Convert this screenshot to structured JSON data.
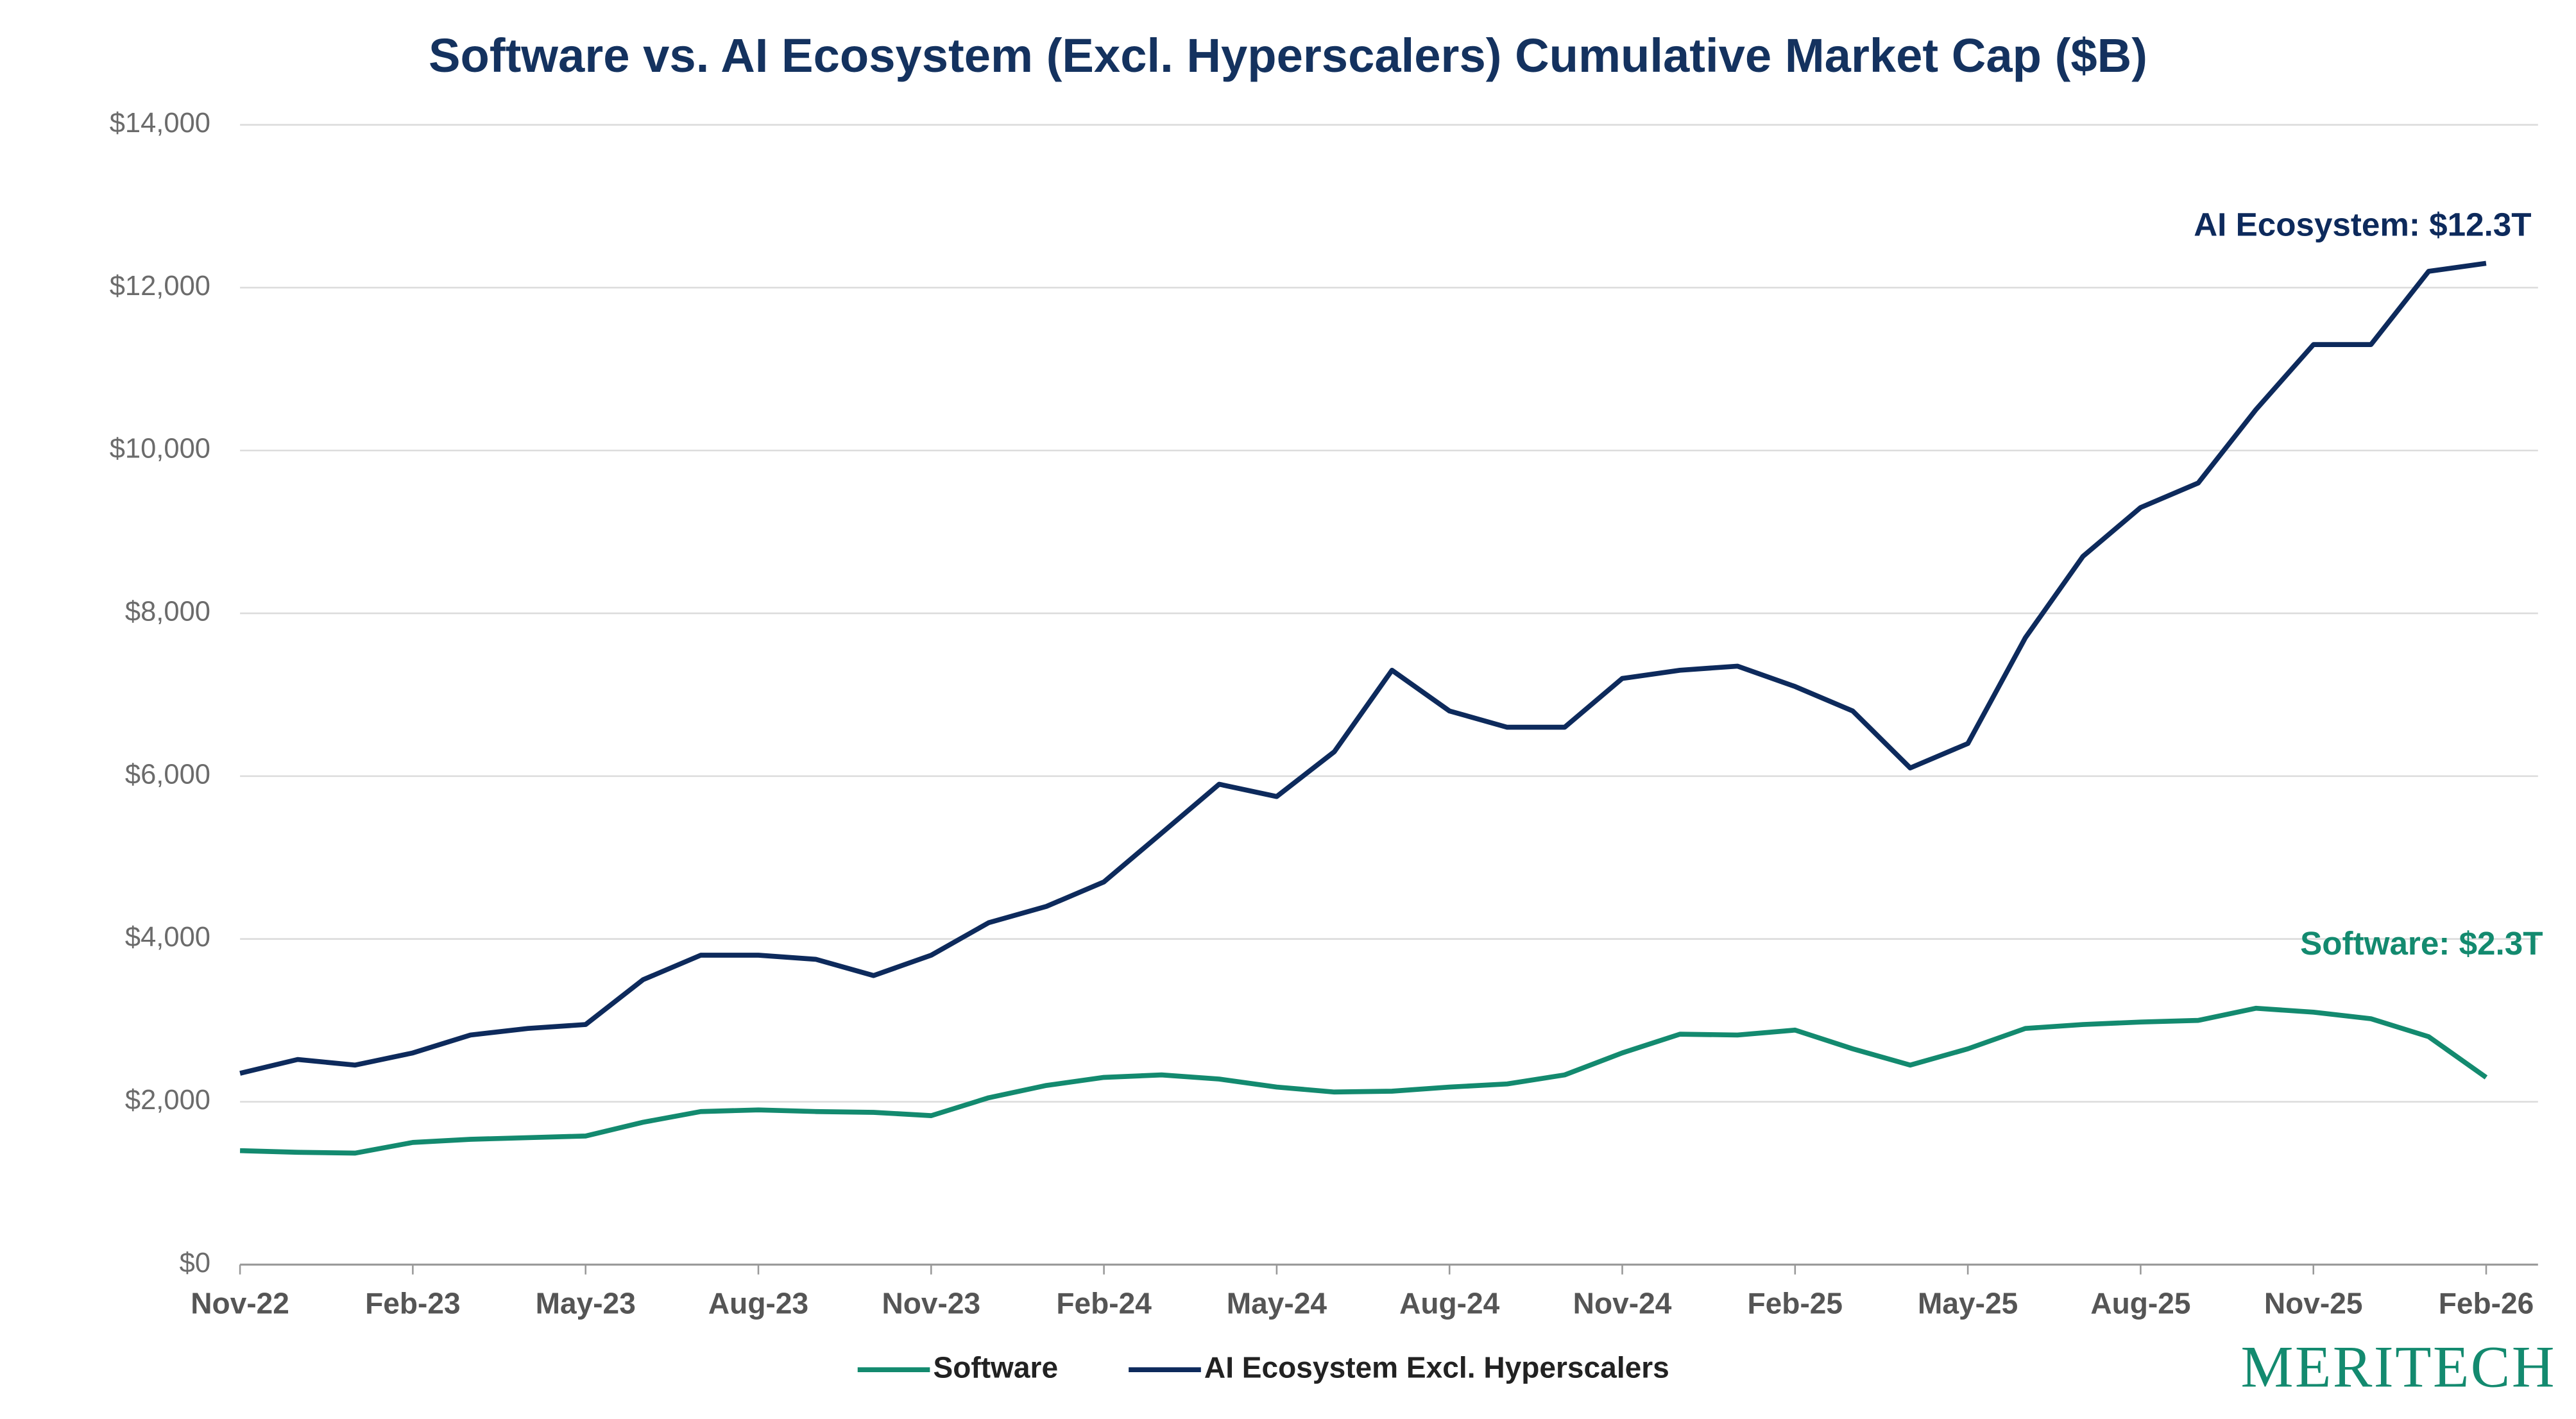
{
  "chart_data": {
    "type": "line",
    "title": "Software vs. AI Ecosystem (Excl. Hyperscalers) Cumulative Market Cap ($B)",
    "categories": [
      "Nov-22",
      null,
      null,
      "Feb-23",
      null,
      null,
      "May-23",
      null,
      null,
      "Aug-23",
      null,
      null,
      "Nov-23",
      null,
      null,
      "Feb-24",
      null,
      null,
      "May-24",
      null,
      null,
      "Aug-24",
      null,
      null,
      "Nov-24",
      null,
      null,
      "Feb-25",
      null,
      null,
      "May-25",
      null,
      null,
      "Aug-25",
      null,
      null,
      "Nov-25",
      null,
      null,
      "Feb-26"
    ],
    "series": [
      {
        "name": "Software",
        "color": "#138a6f",
        "values": [
          1400,
          1380,
          1370,
          1500,
          1540,
          1560,
          1580,
          1750,
          1880,
          1900,
          1880,
          1870,
          1830,
          2050,
          2200,
          2300,
          2330,
          2280,
          2180,
          2120,
          2130,
          2180,
          2220,
          2330,
          2600,
          2830,
          2820,
          2880,
          2650,
          2450,
          2650,
          2900,
          2950,
          2980,
          3000,
          3150,
          3100,
          3020,
          2800,
          2300
        ]
      },
      {
        "name": "AI Ecosystem Excl. Hyperscalers",
        "color": "#0d2a5c",
        "values": [
          2350,
          2520,
          2450,
          2600,
          2820,
          2900,
          2950,
          3500,
          3800,
          3800,
          3750,
          3550,
          3800,
          4200,
          4400,
          4700,
          5300,
          5900,
          5750,
          6300,
          7300,
          6800,
          6600,
          6600,
          7200,
          7300,
          7350,
          7100,
          6800,
          6100,
          6400,
          7700,
          8700,
          9300,
          9600,
          10500,
          11300,
          11300,
          12200,
          12300
        ]
      }
    ],
    "annotations": [
      "AI Ecosystem: $12.3T",
      "Software: $2.3T"
    ],
    "ylim": [
      0,
      14000
    ],
    "yticks": [
      {
        "value": 0,
        "label": "$0"
      },
      {
        "value": 2000,
        "label": "$2,000"
      },
      {
        "value": 4000,
        "label": "$4,000"
      },
      {
        "value": 6000,
        "label": "$6,000"
      },
      {
        "value": 8000,
        "label": "$8,000"
      },
      {
        "value": 10000,
        "label": "$10,000"
      },
      {
        "value": 12000,
        "label": "$12,000"
      },
      {
        "value": 14000,
        "label": "$14,000"
      }
    ],
    "grid": true,
    "legend": "bottom",
    "logo": "MERITECH"
  }
}
